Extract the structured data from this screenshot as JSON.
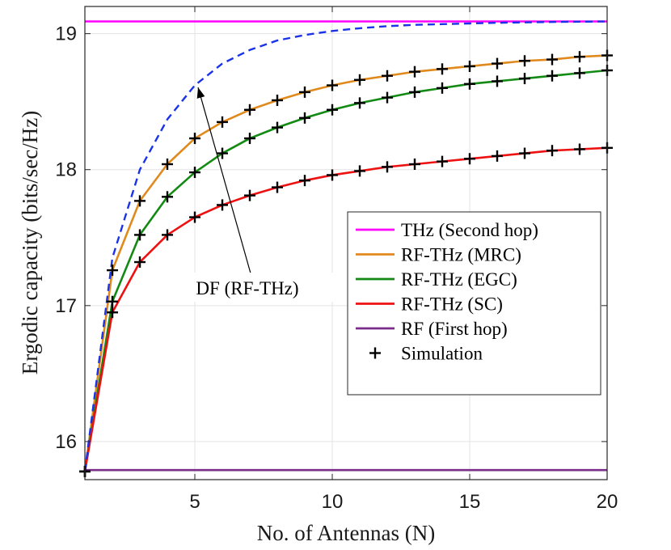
{
  "chart_data": {
    "type": "line",
    "xlabel": "No. of Antennas (N)",
    "ylabel": "Ergodic capacity (bits/sec/Hz)",
    "xlim": [
      1,
      20
    ],
    "ylim": [
      15.72,
      19.2
    ],
    "xticks": [
      5,
      10,
      15,
      20
    ],
    "yticks": [
      16,
      17,
      18,
      19
    ],
    "grid": true,
    "legend_position": "right-middle",
    "x": [
      1,
      2,
      3,
      4,
      5,
      6,
      7,
      8,
      9,
      10,
      11,
      12,
      13,
      14,
      15,
      16,
      17,
      18,
      19,
      20
    ],
    "series": [
      {
        "name": "THz (Second hop)",
        "color": "#ff00ff",
        "style": "solid",
        "in_legend": true,
        "values": [
          19.09,
          19.09,
          19.09,
          19.09,
          19.09,
          19.09,
          19.09,
          19.09,
          19.09,
          19.09,
          19.09,
          19.09,
          19.09,
          19.09,
          19.09,
          19.09,
          19.09,
          19.09,
          19.09,
          19.09
        ]
      },
      {
        "name": "RF-THz (MRC)",
        "color": "#e08a1e",
        "style": "solid",
        "in_legend": true,
        "simulated": true,
        "values": [
          15.78,
          17.26,
          17.77,
          18.04,
          18.23,
          18.35,
          18.44,
          18.51,
          18.57,
          18.62,
          18.66,
          18.69,
          18.72,
          18.74,
          18.76,
          18.78,
          18.8,
          18.81,
          18.83,
          18.84
        ]
      },
      {
        "name": "RF-THz (EGC)",
        "color": "#138a13",
        "style": "solid",
        "in_legend": true,
        "simulated": true,
        "values": [
          15.78,
          17.03,
          17.52,
          17.8,
          17.98,
          18.12,
          18.23,
          18.31,
          18.38,
          18.44,
          18.49,
          18.53,
          18.57,
          18.6,
          18.63,
          18.65,
          18.67,
          18.69,
          18.71,
          18.73
        ]
      },
      {
        "name": "RF-THz (SC)",
        "color": "#ee1111",
        "style": "solid",
        "in_legend": true,
        "simulated": true,
        "values": [
          15.78,
          16.95,
          17.32,
          17.52,
          17.65,
          17.74,
          17.81,
          17.87,
          17.92,
          17.96,
          17.99,
          18.02,
          18.04,
          18.06,
          18.08,
          18.1,
          18.12,
          18.14,
          18.15,
          18.16
        ]
      },
      {
        "name": "RF (First hop)",
        "color": "#7a2d8a",
        "style": "solid",
        "in_legend": true,
        "values": [
          15.79,
          15.79,
          15.79,
          15.79,
          15.79,
          15.79,
          15.79,
          15.79,
          15.79,
          15.79,
          15.79,
          15.79,
          15.79,
          15.79,
          15.79,
          15.79,
          15.79,
          15.79,
          15.79,
          15.79
        ]
      },
      {
        "name": "DF (RF-THz)",
        "color": "#1a33e8",
        "style": "dashed",
        "in_legend": false,
        "values": [
          15.78,
          17.35,
          18.0,
          18.37,
          18.62,
          18.78,
          18.88,
          18.95,
          18.99,
          19.02,
          19.04,
          19.055,
          19.065,
          19.07,
          19.075,
          19.08,
          19.083,
          19.086,
          19.088,
          19.09
        ]
      }
    ],
    "simulation_marker": {
      "name": "Simulation",
      "symbol": "+",
      "color": "#000000"
    },
    "annotations": [
      {
        "text": "DF (RF-THz)",
        "points_to": {
          "x": 5,
          "y": 18.62
        }
      }
    ]
  }
}
